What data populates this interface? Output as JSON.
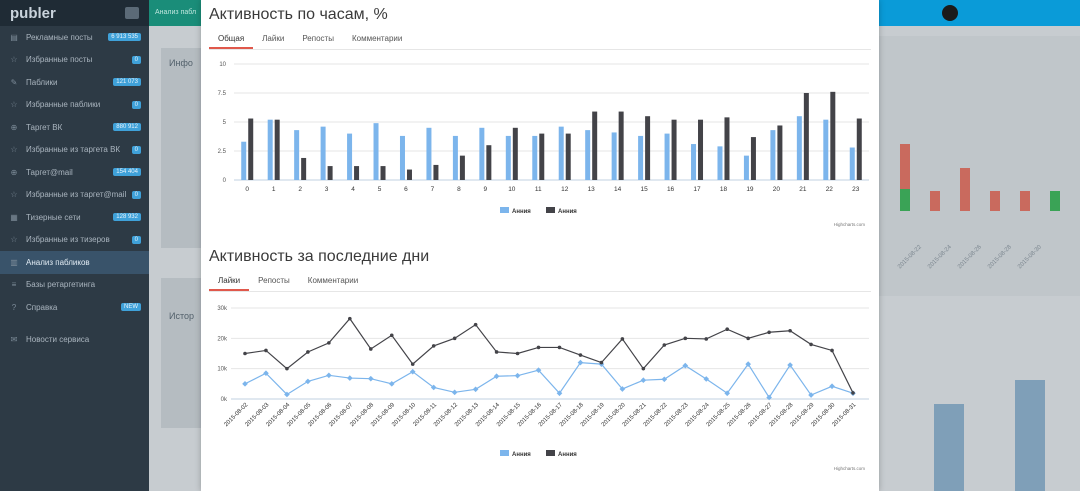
{
  "sidebar": {
    "brand": "publer",
    "items": [
      {
        "label": "Рекламные посты",
        "badge": "6 913 535",
        "icon": "list-icon"
      },
      {
        "label": "Избранные посты",
        "badge": "0",
        "icon": "star-icon"
      },
      {
        "label": "Паблики",
        "badge": "121 073",
        "icon": "chat-icon"
      },
      {
        "label": "Избранные паблики",
        "badge": "0",
        "icon": "star-icon"
      },
      {
        "label": "Таргет ВК",
        "badge": "880 912",
        "icon": "target-icon"
      },
      {
        "label": "Избранные из таргета ВК",
        "badge": "0",
        "icon": "star-icon"
      },
      {
        "label": "Таргет@mail",
        "badge": "154 404",
        "icon": "target-icon"
      },
      {
        "label": "Избранные из таргет@mail",
        "badge": "0",
        "icon": "star-icon"
      },
      {
        "label": "Тизерные сети",
        "badge": "128 932",
        "icon": "grid-icon"
      },
      {
        "label": "Избранные из тизеров",
        "badge": "0",
        "icon": "star-icon"
      },
      {
        "label": "Анализ пабликов",
        "badge": "",
        "icon": "chart-icon"
      },
      {
        "label": "Базы ретаргетинга",
        "badge": "",
        "icon": "database-icon"
      },
      {
        "label": "Справка",
        "badge": "NEW",
        "icon": "help-icon"
      },
      {
        "label": "Новости сервиса",
        "badge": "",
        "icon": "news-icon"
      }
    ]
  },
  "topbar": {
    "left_label": "Анализ пабл"
  },
  "background": {
    "label_info": "Инфо",
    "label_history": "Истор",
    "dates": [
      "2015-08-22",
      "2015-08-24",
      "2015-08-26",
      "2015-08-28",
      "2015-08-30"
    ]
  },
  "chart1": {
    "title": "Активность по часам, %",
    "tabs": [
      "Общая",
      "Лайки",
      "Репосты",
      "Комментарии"
    ],
    "credit": "Highcharts.com"
  },
  "chart2": {
    "title": "Активность за последние дни",
    "tabs": [
      "Лайки",
      "Репосты",
      "Комментарии"
    ],
    "credit": "Highcharts.com"
  },
  "colors": {
    "series_a": "#7cb5ec",
    "series_b": "#434348",
    "tab_active": "#e0584b"
  },
  "chart_data": [
    {
      "type": "bar",
      "categories": [
        "0",
        "1",
        "2",
        "3",
        "4",
        "5",
        "6",
        "7",
        "8",
        "9",
        "10",
        "11",
        "12",
        "13",
        "14",
        "15",
        "16",
        "17",
        "18",
        "19",
        "20",
        "21",
        "22",
        "23"
      ],
      "series": [
        {
          "name": "Анния",
          "values": [
            3.3,
            5.2,
            4.3,
            4.6,
            4.0,
            4.9,
            3.8,
            4.5,
            3.8,
            4.5,
            3.8,
            3.8,
            4.6,
            4.3,
            4.1,
            3.8,
            4.0,
            3.1,
            2.9,
            2.1,
            4.3,
            5.5,
            5.2,
            2.8
          ]
        },
        {
          "name": "Анния",
          "values": [
            5.3,
            5.2,
            1.9,
            1.2,
            1.2,
            1.2,
            0.9,
            1.3,
            2.1,
            3.0,
            4.5,
            4.0,
            4.0,
            5.9,
            5.9,
            5.5,
            5.2,
            5.2,
            5.4,
            3.7,
            4.7,
            7.5,
            7.6,
            5.3
          ]
        }
      ],
      "ylim": [
        0,
        10
      ],
      "yticks": [
        "0",
        "2.5",
        "5",
        "7.5",
        "10"
      ],
      "legend": "bottom-center"
    },
    {
      "type": "line",
      "categories": [
        "2015-08-02",
        "2015-08-03",
        "2015-08-04",
        "2015-08-05",
        "2015-08-06",
        "2015-08-07",
        "2015-08-08",
        "2015-08-09",
        "2015-08-10",
        "2015-08-11",
        "2015-08-12",
        "2015-08-13",
        "2015-08-14",
        "2015-08-15",
        "2015-08-16",
        "2015-08-17",
        "2015-08-18",
        "2015-08-19",
        "2015-08-20",
        "2015-08-21",
        "2015-08-22",
        "2015-08-23",
        "2015-08-24",
        "2015-08-25",
        "2015-08-26",
        "2015-08-27",
        "2015-08-28",
        "2015-08-29",
        "2015-08-30",
        "2015-08-31"
      ],
      "series": [
        {
          "name": "Анния",
          "values": [
            5000,
            8500,
            1500,
            5800,
            7800,
            6900,
            6700,
            5000,
            9000,
            3800,
            2200,
            3200,
            7500,
            7700,
            9500,
            1900,
            12000,
            11500,
            3300,
            6200,
            6500,
            11000,
            6600,
            1900,
            11500,
            500,
            11200,
            1300,
            4200,
            1900
          ]
        },
        {
          "name": "Анния",
          "values": [
            15000,
            16000,
            10000,
            15500,
            18500,
            26500,
            16500,
            21000,
            11500,
            17500,
            20000,
            24500,
            15500,
            15000,
            17000,
            17000,
            14500,
            12000,
            19800,
            10000,
            17800,
            20000,
            19800,
            23000,
            20000,
            22000,
            22500,
            18000,
            16000,
            2000
          ]
        }
      ],
      "ylim": [
        0,
        30000
      ],
      "yticks": [
        "0k",
        "10k",
        "20k",
        "30k"
      ],
      "legend": "bottom-center"
    }
  ]
}
